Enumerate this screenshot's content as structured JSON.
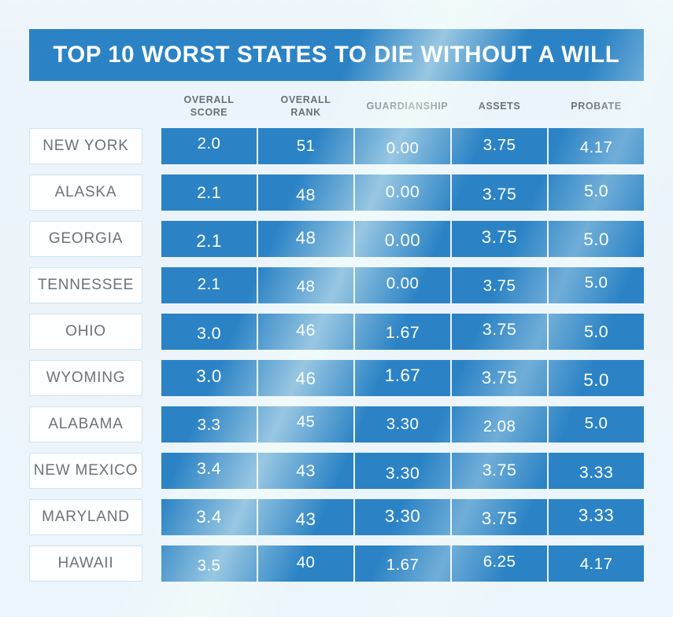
{
  "title": "TOP 10 WORST STATES TO DIE WITHOUT A WILL",
  "colors": {
    "primary_blue": "#2b83c5",
    "background": "#ecf5fb",
    "header_text": "#697078",
    "state_text": "#6d7378",
    "state_box_border": "#cde4f2",
    "state_box_bg": "#fdfeff",
    "cell_text": "#ffffff"
  },
  "chart_data": {
    "type": "table",
    "title": "TOP 10 WORST STATES TO DIE WITHOUT A WILL",
    "columns": [
      "OVERALL SCORE",
      "OVERALL RANK",
      "GUARDIANSHIP",
      "ASSETS",
      "PROBATE"
    ],
    "rows": [
      {
        "state": "NEW YORK",
        "values": [
          "2.0",
          "51",
          "0.00",
          "3.75",
          "4.17"
        ]
      },
      {
        "state": "ALASKA",
        "values": [
          "2.1",
          "48",
          "0.00",
          "3.75",
          "5.0"
        ]
      },
      {
        "state": "GEORGIA",
        "values": [
          "2.1",
          "48",
          "0.00",
          "3.75",
          "5.0"
        ]
      },
      {
        "state": "TENNESSEE",
        "values": [
          "2.1",
          "48",
          "0.00",
          "3.75",
          "5.0"
        ]
      },
      {
        "state": "OHIO",
        "values": [
          "3.0",
          "46",
          "1.67",
          "3.75",
          "5.0"
        ]
      },
      {
        "state": "WYOMING",
        "values": [
          "3.0",
          "46",
          "1.67",
          "3.75",
          "5.0"
        ]
      },
      {
        "state": "ALABAMA",
        "values": [
          "3.3",
          "45",
          "3.30",
          "2.08",
          "5.0"
        ]
      },
      {
        "state": "NEW MEXICO",
        "values": [
          "3.4",
          "43",
          "3.30",
          "3.75",
          "3.33"
        ]
      },
      {
        "state": "MARYLAND",
        "values": [
          "3.4",
          "43",
          "3.30",
          "3.75",
          "3.33"
        ]
      },
      {
        "state": "HAWAII",
        "values": [
          "3.5",
          "40",
          "1.67",
          "6.25",
          "4.17"
        ]
      }
    ]
  }
}
